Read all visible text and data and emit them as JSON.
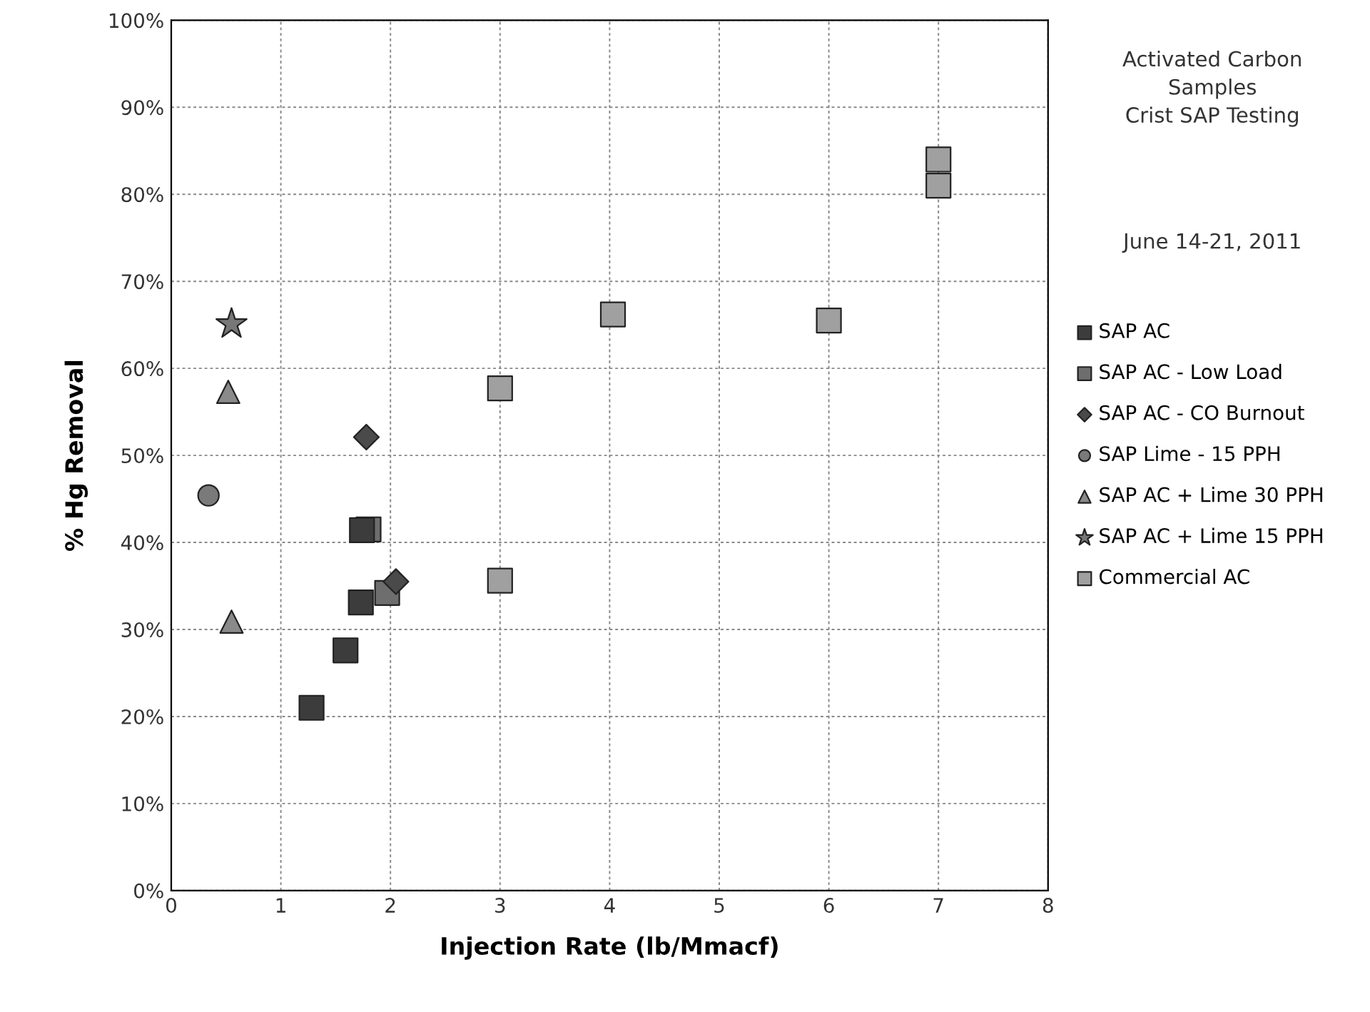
{
  "chart_data": {
    "type": "scatter",
    "xlabel": "Injection Rate (lb/Mmacf)",
    "ylabel": "% Hg Removal",
    "annotations": [
      "Activated Carbon\nSamples\nCrist SAP Testing",
      "June 14-21, 2011"
    ],
    "xlim": [
      0,
      8
    ],
    "xticks": [
      0,
      1,
      2,
      3,
      4,
      5,
      6,
      7,
      8
    ],
    "ylim": [
      0,
      100
    ],
    "yticks": [
      {
        "value": 0,
        "label": "0%"
      },
      {
        "value": 10,
        "label": "10%"
      },
      {
        "value": 20,
        "label": "20%"
      },
      {
        "value": 30,
        "label": "30%"
      },
      {
        "value": 40,
        "label": "40%"
      },
      {
        "value": 50,
        "label": "50%"
      },
      {
        "value": 60,
        "label": "60%"
      },
      {
        "value": 70,
        "label": "70%"
      },
      {
        "value": 80,
        "label": "80%"
      },
      {
        "value": 90,
        "label": "90%"
      },
      {
        "value": 100,
        "label": "100%"
      }
    ],
    "grid": true,
    "legend": "right",
    "series": [
      {
        "name": "SAP AC",
        "color": "#3c3c3c",
        "marker": "square",
        "x": [
          1.28,
          1.59,
          1.73,
          1.74
        ],
        "values": [
          21,
          27.6,
          33.1,
          41.4
        ]
      },
      {
        "name": "SAP AC - Low Load",
        "color": "#6e6e6e",
        "marker": "square",
        "x": [
          1.8,
          1.97
        ],
        "values": [
          41.5,
          34.2
        ]
      },
      {
        "name": "SAP AC - CO Burnout",
        "color": "#4a4a4a",
        "marker": "diamond",
        "x": [
          1.78,
          2.05
        ],
        "values": [
          52.1,
          35.5
        ]
      },
      {
        "name": "SAP Lime - 15 PPH",
        "color": "#7a7a7a",
        "marker": "circle",
        "x": [
          0.34
        ],
        "values": [
          45.4
        ]
      },
      {
        "name": "SAP AC + Lime 30 PPH",
        "color": "#8a8a8a",
        "marker": "triangle",
        "x": [
          0.52,
          0.55
        ],
        "values": [
          57.3,
          30.9
        ]
      },
      {
        "name": "SAP AC + Lime 15 PPH",
        "color": "#777777",
        "marker": "star",
        "x": [
          0.55
        ],
        "values": [
          65.1
        ]
      },
      {
        "name": "Commercial AC",
        "color": "#a0a0a0",
        "marker": "square",
        "x": [
          3,
          3,
          4.03,
          6,
          7,
          7
        ],
        "values": [
          57.7,
          35.6,
          66.2,
          65.5,
          84,
          81
        ]
      }
    ]
  }
}
